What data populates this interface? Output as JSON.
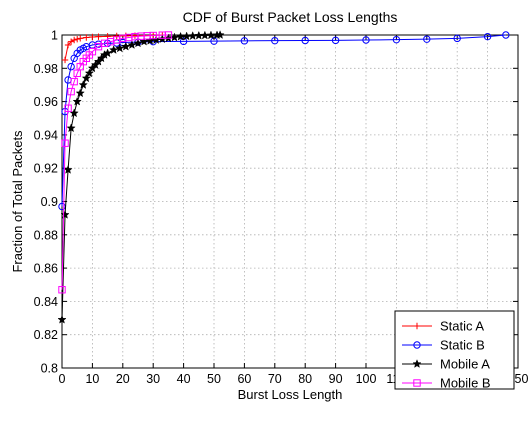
{
  "chart_data": {
    "type": "line",
    "title": "CDF of Burst Packet Loss Lengths",
    "xlabel": "Burst Loss Length",
    "ylabel": "Fraction of Total Packets",
    "xlim": [
      0,
      150
    ],
    "ylim": [
      0.8,
      1.0
    ],
    "xticks": [
      0,
      10,
      20,
      30,
      40,
      50,
      60,
      70,
      80,
      90,
      100,
      110,
      120,
      130,
      140,
      150
    ],
    "xtick_labels": [
      "0",
      "10",
      "20",
      "30",
      "40",
      "50",
      "60",
      "70",
      "80",
      "90",
      "100",
      "110",
      "120",
      "130",
      "140",
      "150"
    ],
    "yticks": [
      0.8,
      0.82,
      0.84,
      0.86,
      0.88,
      0.9,
      0.92,
      0.94,
      0.96,
      0.98,
      1.0
    ],
    "ytick_labels": [
      "0.8",
      "0.82",
      "0.84",
      "0.86",
      "0.88",
      "0.9",
      "0.92",
      "0.94",
      "0.96",
      "0.98",
      "1"
    ],
    "grid": true,
    "legend_position": "bottom-right",
    "series": [
      {
        "name": "Static A",
        "color": "#ff0000",
        "marker": "plus",
        "x": [
          1,
          2,
          3,
          4,
          5,
          6,
          8,
          10,
          12,
          15,
          18,
          21,
          24,
          27,
          30,
          33
        ],
        "y": [
          0.985,
          0.994,
          0.996,
          0.997,
          0.9975,
          0.998,
          0.9985,
          0.9988,
          0.999,
          0.9992,
          0.9994,
          0.9995,
          0.9996,
          0.9997,
          0.9998,
          1.0
        ]
      },
      {
        "name": "Static B",
        "color": "#0000ff",
        "marker": "circle",
        "x": [
          0,
          1,
          2,
          3,
          4,
          5,
          6,
          7,
          8,
          10,
          12,
          15,
          18,
          20,
          25,
          30,
          40,
          50,
          60,
          70,
          80,
          90,
          100,
          110,
          120,
          130,
          140,
          146
        ],
        "y": [
          0.897,
          0.954,
          0.973,
          0.981,
          0.986,
          0.989,
          0.991,
          0.992,
          0.993,
          0.994,
          0.9945,
          0.995,
          0.9952,
          0.9955,
          0.9957,
          0.996,
          0.9962,
          0.9963,
          0.9965,
          0.9966,
          0.9967,
          0.9968,
          0.997,
          0.9972,
          0.9975,
          0.998,
          0.999,
          1.0
        ]
      },
      {
        "name": "Mobile A",
        "color": "#000000",
        "marker": "star",
        "x": [
          0,
          1,
          2,
          3,
          4,
          5,
          6,
          7,
          8,
          9,
          10,
          11,
          12,
          13,
          14,
          15,
          17,
          19,
          21,
          23,
          25,
          27,
          29,
          31,
          33,
          35,
          37,
          39,
          41,
          43,
          45,
          47,
          49,
          51,
          52
        ],
        "y": [
          0.829,
          0.892,
          0.919,
          0.944,
          0.953,
          0.96,
          0.965,
          0.97,
          0.974,
          0.977,
          0.98,
          0.982,
          0.984,
          0.986,
          0.988,
          0.989,
          0.991,
          0.992,
          0.993,
          0.994,
          0.995,
          0.996,
          0.9965,
          0.997,
          0.9975,
          0.998,
          0.9985,
          0.999,
          0.9992,
          0.9994,
          0.9996,
          0.9997,
          0.9998,
          0.9999,
          1.0
        ]
      },
      {
        "name": "Mobile B",
        "color": "#ff00ff",
        "marker": "square",
        "x": [
          0,
          1,
          2,
          3,
          4,
          5,
          6,
          7,
          8,
          9,
          10,
          12,
          14,
          16,
          18,
          20,
          22,
          24,
          26,
          28,
          30,
          33,
          35
        ],
        "y": [
          0.847,
          0.935,
          0.956,
          0.966,
          0.972,
          0.977,
          0.981,
          0.984,
          0.986,
          0.988,
          0.99,
          0.993,
          0.995,
          0.996,
          0.997,
          0.998,
          0.9985,
          0.999,
          0.9993,
          0.9995,
          0.9997,
          0.9999,
          1.0
        ]
      }
    ]
  }
}
